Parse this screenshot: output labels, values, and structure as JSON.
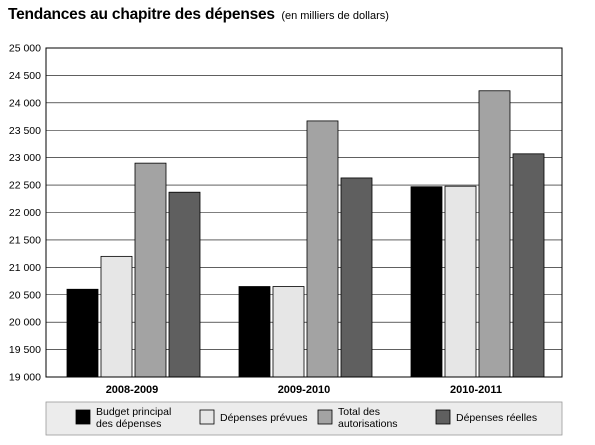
{
  "chart_data": {
    "type": "bar",
    "title": "Tendances au chapitre des dépenses",
    "subtitle": "(en milliers de dollars)",
    "categories": [
      "2008-2009",
      "2009-2010",
      "2010-2011"
    ],
    "ylim": [
      19000,
      25000
    ],
    "yticks": [
      "25 000",
      "24 500",
      "24 000",
      "23 500",
      "23 000",
      "22 500",
      "22 000",
      "21 500",
      "21 000",
      "20 500",
      "20 000",
      "19 500",
      "19 000"
    ],
    "ytick_values": [
      25000,
      24500,
      24000,
      23500,
      23000,
      22500,
      22000,
      21500,
      21000,
      20500,
      20000,
      19500,
      19000
    ],
    "grid": true,
    "legend_position": "bottom",
    "series": [
      {
        "name": "Budget principal des dépenses",
        "label_lines": [
          "Budget principal",
          "des dépenses"
        ],
        "color": "#000000",
        "values": [
          20600,
          20650,
          22470
        ]
      },
      {
        "name": "Dépenses prévues",
        "label_lines": [
          "Dépenses prévues"
        ],
        "color": "#e6e6e6",
        "values": [
          21200,
          20650,
          22480
        ]
      },
      {
        "name": "Total des autorisations",
        "label_lines": [
          "Total des",
          "autorisations"
        ],
        "color": "#a3a3a3",
        "values": [
          22900,
          23670,
          24220
        ]
      },
      {
        "name": "Dépenses réelles",
        "label_lines": [
          "Dépenses réelles"
        ],
        "color": "#5f5f5f",
        "values": [
          22370,
          22630,
          23070
        ]
      }
    ]
  }
}
